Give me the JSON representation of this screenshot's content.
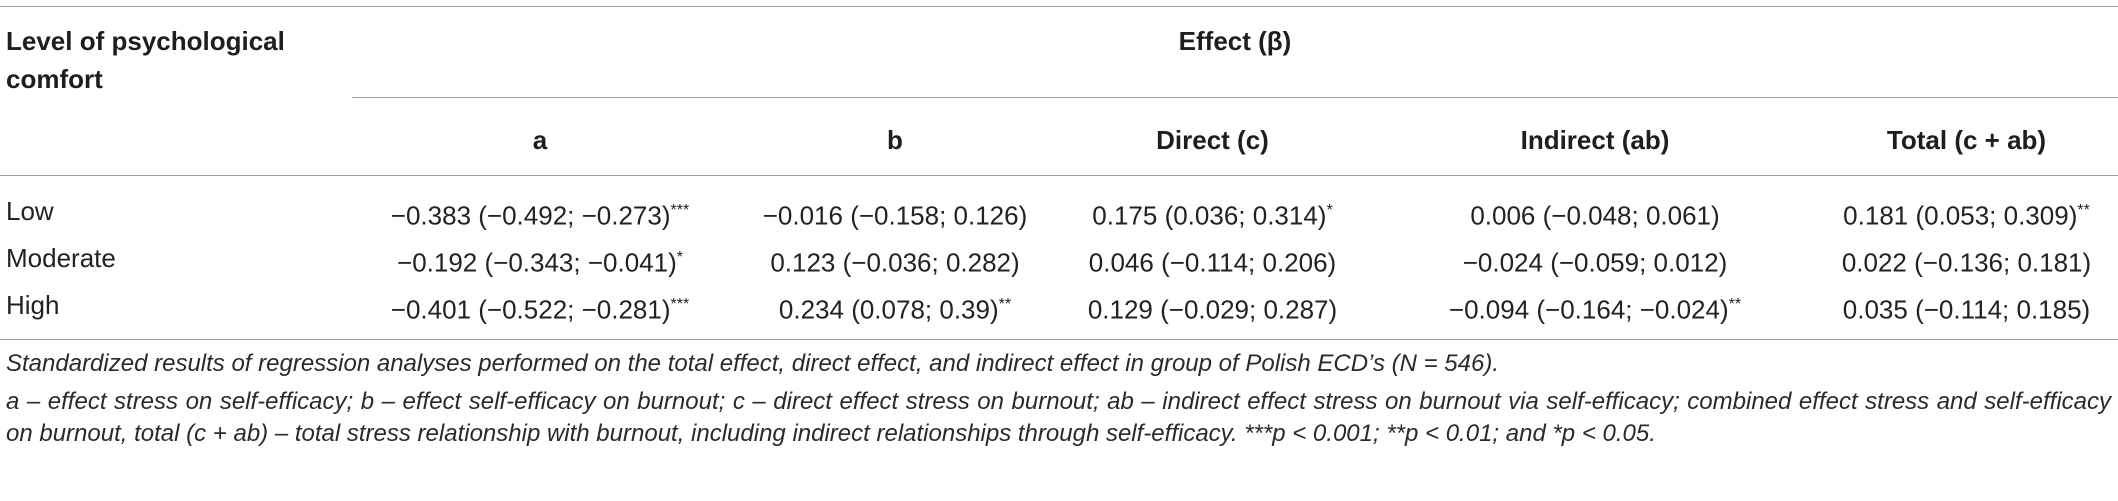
{
  "table": {
    "row_header": "Level of psychological comfort",
    "group_header": "Effect (β)",
    "columns": [
      "a",
      "b",
      "Direct (c)",
      "Indirect (ab)",
      "Total (c + ab)"
    ],
    "rows": [
      {
        "label": "Low",
        "cells": [
          {
            "value": "−0.383 (−0.492; −0.273)",
            "sig": "***"
          },
          {
            "value": "−0.016 (−0.158; 0.126)",
            "sig": ""
          },
          {
            "value": "0.175 (0.036; 0.314)",
            "sig": "*"
          },
          {
            "value": "0.006 (−0.048; 0.061)",
            "sig": ""
          },
          {
            "value": "0.181 (0.053; 0.309)",
            "sig": "**"
          }
        ]
      },
      {
        "label": "Moderate",
        "cells": [
          {
            "value": "−0.192 (−0.343; −0.041)",
            "sig": "*"
          },
          {
            "value": "0.123 (−0.036; 0.282)",
            "sig": ""
          },
          {
            "value": "0.046 (−0.114; 0.206)",
            "sig": ""
          },
          {
            "value": "−0.024 (−0.059; 0.012)",
            "sig": ""
          },
          {
            "value": "0.022 (−0.136; 0.181)",
            "sig": ""
          }
        ]
      },
      {
        "label": "High",
        "cells": [
          {
            "value": "−0.401 (−0.522; −0.281)",
            "sig": "***"
          },
          {
            "value": "0.234 (0.078; 0.39)",
            "sig": "**"
          },
          {
            "value": "0.129 (−0.029; 0.287)",
            "sig": ""
          },
          {
            "value": "−0.094 (−0.164; −0.024)",
            "sig": "**"
          },
          {
            "value": "0.035 (−0.114; 0.185)",
            "sig": ""
          }
        ]
      }
    ]
  },
  "footnotes": [
    "Standardized results of regression analyses performed on the total effect, direct effect, and indirect effect in group of Polish ECD’s (N = 546).",
    "a – effect stress on self-efficacy; b – effect self-efficacy on burnout; c – direct effect stress on burnout; ab – indirect effect stress on burnout via self-efficacy; combined effect stress and self-efficacy on burnout, total (c + ab) – total stress relationship with burnout, including indirect relationships through self-efficacy. ***p < 0.001; **p < 0.01; and *p < 0.05."
  ]
}
